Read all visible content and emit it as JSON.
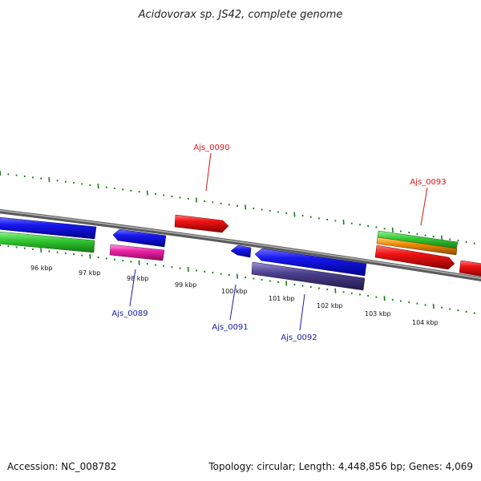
{
  "title": "Acidovorax sp. JS42, complete genome",
  "footer": {
    "accession": "Accession: NC_008782",
    "stats": "Topology: circular; Length: 4,448,856 bp; Genes: 4,069"
  },
  "scale": {
    "unit": "kbp",
    "labels": [
      "96 kbp",
      "97 kbp",
      "98 kbp",
      "99 kbp",
      "100 kbp",
      "101 kbp",
      "102 kbp",
      "103 kbp",
      "104 kbp"
    ]
  },
  "colors": {
    "backbone": "#808080",
    "tick": "#1a7a1a",
    "forward_label": "#dd1111",
    "reverse_label": "#1a1aaa",
    "blue": "#0a0ae6",
    "red": "#ee1111",
    "green": "#33cc33",
    "orange": "#f08c00",
    "magenta": "#ee22aa",
    "purple": "#4a3f8c"
  },
  "gene_labels": {
    "ajs_0089": "Ajs_0089",
    "ajs_0090": "Ajs_0090",
    "ajs_0091": "Ajs_0091",
    "ajs_0092": "Ajs_0092",
    "ajs_0093": "Ajs_0093"
  }
}
